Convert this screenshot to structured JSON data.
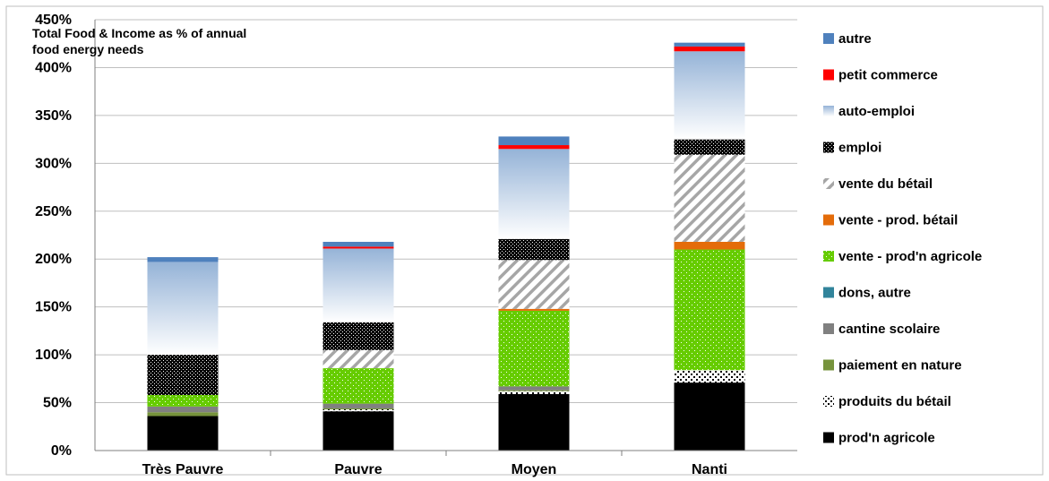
{
  "chart_data": {
    "type": "bar",
    "stacked": true,
    "title": "",
    "annotation_lines": [
      "Total Food & Income as % of annual",
      "food energy needs"
    ],
    "xlabel": "",
    "ylabel": "",
    "ylim": [
      0,
      450
    ],
    "y_step": 50,
    "y_tick_suffix": "%",
    "grid": true,
    "legend_position": "right",
    "categories": [
      "Très Pauvre",
      "Pauvre",
      "Moyen",
      "Nanti"
    ],
    "series": [
      {
        "name": "prod'n agricole",
        "color": "#000000",
        "pattern": "solid",
        "values": [
          36,
          41,
          59,
          71
        ]
      },
      {
        "name": "produits du bétail",
        "color": "#000000",
        "pattern": "dots-on-white",
        "values": [
          0,
          2,
          3,
          13
        ]
      },
      {
        "name": "paiement en nature",
        "color": "#76933c",
        "pattern": "solid",
        "values": [
          4,
          1,
          1,
          0
        ]
      },
      {
        "name": "cantine scolaire",
        "color": "#808080",
        "pattern": "solid",
        "values": [
          6,
          5,
          4,
          0
        ]
      },
      {
        "name": "dons, autre",
        "color": "#31849b",
        "pattern": "solid",
        "values": [
          0,
          0,
          0,
          0
        ]
      },
      {
        "name": "vente - prod'n agricole",
        "color": "#66cc00",
        "pattern": "dotted-green",
        "values": [
          12,
          37,
          79,
          126
        ]
      },
      {
        "name": "vente - prod. bétail",
        "color": "#e46c0a",
        "pattern": "solid",
        "values": [
          0,
          0,
          2,
          8
        ]
      },
      {
        "name": "vente du bétail",
        "color": "#a6a6a6",
        "pattern": "diagonal-stripes",
        "values": [
          0,
          19,
          51,
          91
        ]
      },
      {
        "name": "emploi",
        "color": "#000000",
        "pattern": "dense-dots",
        "values": [
          42,
          29,
          22,
          16
        ]
      },
      {
        "name": "auto-emploi",
        "color": "#95b3d7",
        "pattern": "gradient",
        "values": [
          97,
          77,
          94,
          92
        ]
      },
      {
        "name": "petit commerce",
        "color": "#ff0000",
        "pattern": "solid",
        "values": [
          0,
          2,
          4,
          5
        ]
      },
      {
        "name": "autre",
        "color": "#4f81bd",
        "pattern": "solid",
        "values": [
          5,
          5,
          9,
          4
        ]
      }
    ]
  }
}
